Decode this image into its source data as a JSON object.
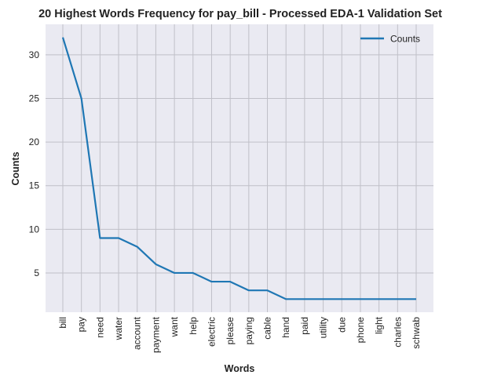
{
  "chart_data": {
    "type": "line",
    "title": "20 Highest Words Frequency for pay_bill - Processed EDA-1 Validation Set",
    "xlabel": "Words",
    "ylabel": "Counts",
    "categories": [
      "bill",
      "pay",
      "need",
      "water",
      "account",
      "payment",
      "want",
      "help",
      "electric",
      "please",
      "paying",
      "cable",
      "hand",
      "paid",
      "utility",
      "due",
      "phone",
      "light",
      "charles",
      "schwab"
    ],
    "series": [
      {
        "name": "Counts",
        "values": [
          32,
          25,
          9,
          9,
          8,
          6,
          5,
          5,
          4,
          4,
          3,
          3,
          2,
          2,
          2,
          2,
          2,
          2,
          2,
          2
        ]
      }
    ],
    "ylim": [
      0.5,
      33.5
    ],
    "yticks": [
      5,
      10,
      15,
      20,
      25,
      30
    ],
    "grid": true,
    "legend_position": "top-right"
  },
  "colors": {
    "series": "#1f77b4",
    "plot_background": "#eaeaf2",
    "grid": "#c0c0c8"
  }
}
